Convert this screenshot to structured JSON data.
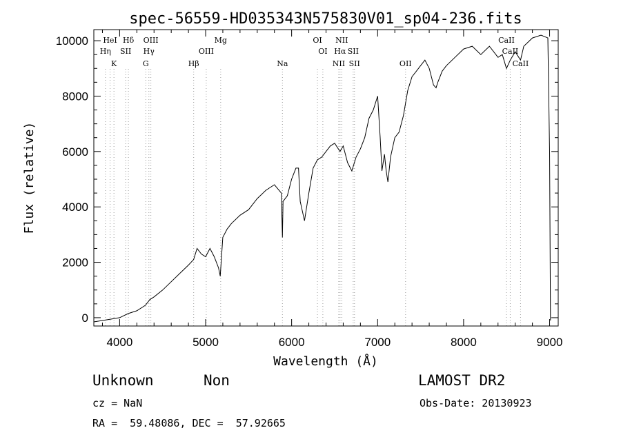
{
  "chart_data": {
    "type": "line",
    "title": "spec-56559-HD035343N575830V01_sp04-236.fits",
    "xlabel": "Wavelength (Å)",
    "ylabel": "Flux (relative)",
    "xlim": [
      3700,
      9100
    ],
    "ylim": [
      -300,
      10400
    ],
    "x_ticks": [
      4000,
      5000,
      6000,
      7000,
      8000,
      9000
    ],
    "y_ticks": [
      0,
      2000,
      4000,
      6000,
      8000,
      10000
    ],
    "grid": false,
    "series": [
      {
        "x": [
          3700,
          3800,
          3900,
          4000,
          4100,
          4200,
          4300,
          4350,
          4400,
          4500,
          4600,
          4700,
          4800,
          4860,
          4900,
          4950,
          5000,
          5050,
          5100,
          5150,
          5170,
          5200,
          5250,
          5300,
          5400,
          5500,
          5600,
          5700,
          5800,
          5880,
          5893,
          5900,
          5950,
          6000,
          6050,
          6080,
          6100,
          6150,
          6200,
          6250,
          6300,
          6350,
          6400,
          6450,
          6500,
          6563,
          6600,
          6650,
          6700,
          6750,
          6800,
          6850,
          6900,
          6950,
          7000,
          7030,
          7050,
          7080,
          7100,
          7120,
          7150,
          7200,
          7250,
          7300,
          7350,
          7400,
          7450,
          7500,
          7550,
          7600,
          7650,
          7680,
          7700,
          7750,
          7800,
          7900,
          8000,
          8100,
          8200,
          8300,
          8400,
          8450,
          8498,
          8542,
          8600,
          8662,
          8700,
          8800,
          8900,
          8980,
          9000,
          9010
        ],
        "y": [
          -150,
          -100,
          -50,
          0,
          150,
          250,
          450,
          650,
          750,
          1000,
          1300,
          1600,
          1900,
          2100,
          2500,
          2300,
          2200,
          2500,
          2200,
          1800,
          1500,
          2900,
          3200,
          3400,
          3700,
          3900,
          4300,
          4600,
          4800,
          4500,
          2900,
          4200,
          4400,
          5000,
          5400,
          5400,
          4200,
          3500,
          4500,
          5400,
          5700,
          5800,
          6000,
          6200,
          6300,
          6000,
          6200,
          5600,
          5300,
          5800,
          6100,
          6500,
          7200,
          7500,
          8000,
          6500,
          5300,
          5900,
          5300,
          4900,
          5800,
          6500,
          6700,
          7300,
          8200,
          8700,
          8900,
          9100,
          9300,
          9000,
          8400,
          8300,
          8500,
          8900,
          9100,
          9400,
          9700,
          9800,
          9500,
          9800,
          9400,
          9500,
          9000,
          9300,
          9600,
          9300,
          9800,
          10100,
          10200,
          10100,
          6000,
          -100
        ]
      }
    ],
    "lines": [
      {
        "label": "HeI",
        "x": 3889,
        "row": 0
      },
      {
        "label": "Hη",
        "x": 3835,
        "row": 1
      },
      {
        "label": "K",
        "x": 3934,
        "row": 2
      },
      {
        "label": "Hδ",
        "x": 4102,
        "row": 0
      },
      {
        "label": "SII",
        "x": 4070,
        "row": 1
      },
      {
        "label": "OIII",
        "x": 4363,
        "row": 0
      },
      {
        "label": "Hγ",
        "x": 4340,
        "row": 1
      },
      {
        "label": "G",
        "x": 4304,
        "row": 2
      },
      {
        "label": "Hβ",
        "x": 4861,
        "row": 2
      },
      {
        "label": "OIII",
        "x": 5007,
        "row": 1
      },
      {
        "label": "Mg",
        "x": 5175,
        "row": 0
      },
      {
        "label": "Na",
        "x": 5893,
        "row": 2
      },
      {
        "label": "OI",
        "x": 6300,
        "row": 0
      },
      {
        "label": "OI",
        "x": 6363,
        "row": 1
      },
      {
        "label": "NII",
        "x": 6583,
        "row": 0
      },
      {
        "label": "Hα",
        "x": 6563,
        "row": 1
      },
      {
        "label": "NII",
        "x": 6548,
        "row": 2
      },
      {
        "label": "SII",
        "x": 6716,
        "row": 1
      },
      {
        "label": "SII",
        "x": 6731,
        "row": 2
      },
      {
        "label": "OII",
        "x": 7325,
        "row": 2
      },
      {
        "label": "CaII",
        "x": 8498,
        "row": 0
      },
      {
        "label": "CaII",
        "x": 8542,
        "row": 1
      },
      {
        "label": "CaII",
        "x": 8662,
        "row": 2
      }
    ],
    "line_colors": {
      "dotted": "#999999",
      "highlight": "#cc3333"
    }
  },
  "footer": {
    "class_text": "Unknown",
    "subclass_text": "Non",
    "survey": "LAMOST DR2",
    "cz": "cz = NaN",
    "obs_date": "Obs-Date: 20130923",
    "radec": "RA =  59.48086, DEC =  57.92665"
  }
}
